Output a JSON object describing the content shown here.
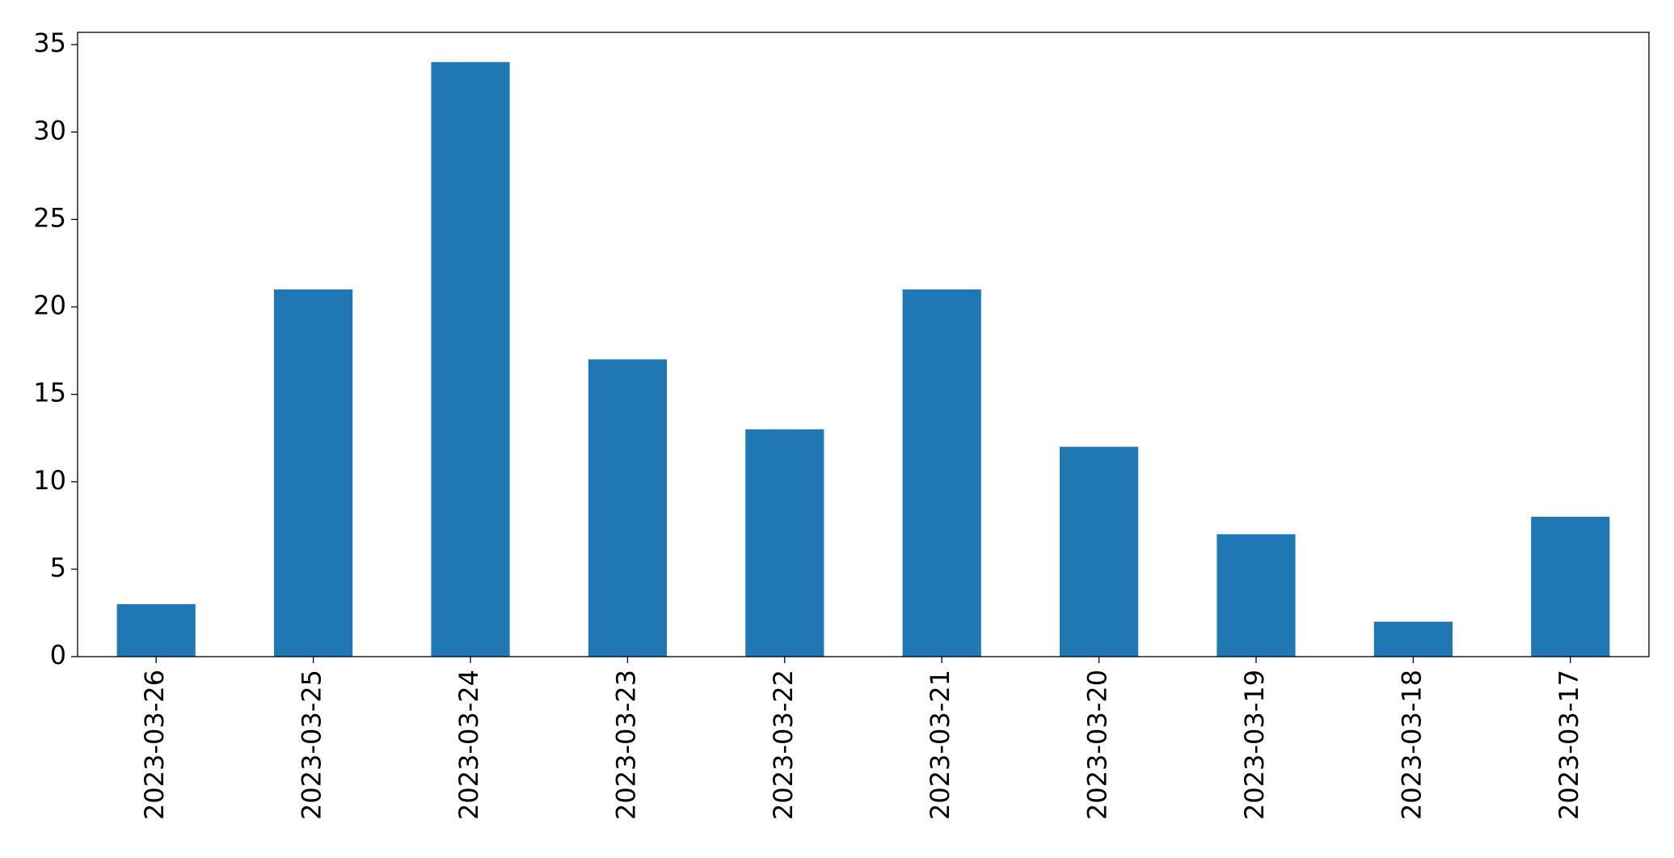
{
  "chart_data": {
    "type": "bar",
    "categories": [
      "2023-03-26",
      "2023-03-25",
      "2023-03-24",
      "2023-03-23",
      "2023-03-22",
      "2023-03-21",
      "2023-03-20",
      "2023-03-19",
      "2023-03-18",
      "2023-03-17"
    ],
    "values": [
      3,
      21,
      34,
      17,
      13,
      21,
      12,
      7,
      2,
      8
    ],
    "color": "#1f77b4",
    "ylim": [
      0,
      35.7
    ],
    "yticks": [
      0,
      5,
      10,
      15,
      20,
      25,
      30,
      35
    ],
    "grid": false
  }
}
